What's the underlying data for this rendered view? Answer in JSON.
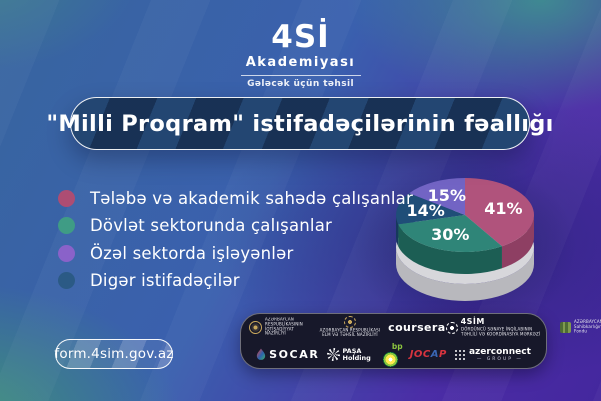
{
  "brand": {
    "name": "4Sİ",
    "subtitle": "Akademiyası",
    "tagline": "Gələcək üçün təhsil"
  },
  "title": "\"Milli Proqram\" istifadəçilərinin fəallığı",
  "legend": [
    {
      "label": "Tələbə və akademik sahədə çalışanlar",
      "color": "#ad4d73"
    },
    {
      "label": "Dövlət sektorunda çalışanlar",
      "color": "#3f9c85"
    },
    {
      "label": "Özəl sektorda işləyənlər",
      "color": "#8a62c9"
    },
    {
      "label": "Digər istifadəçilər",
      "color": "#2b5a85"
    }
  ],
  "chart_data": {
    "type": "pie",
    "style": "3d",
    "title": "\"Milli Proqram\" istifadəçilərinin fəallığı",
    "labels": [
      "Tələbə və akademik sahədə çalışanlar",
      "Dövlət sektorunda çalışanlar",
      "Özəl sektorda işləyənlər",
      "Digər istifadəçilər"
    ],
    "values": [
      41,
      30,
      15,
      14
    ],
    "value_labels": [
      "41%",
      "30%",
      "15%",
      "14%"
    ],
    "colors": [
      "#b0537c",
      "#2f8578",
      "#7264c4",
      "#1f4e78"
    ],
    "side_colors": [
      "#8e3f63",
      "#1c5e54",
      "#594ca7",
      "#16395c"
    ],
    "clockwise_order": [
      0,
      1,
      3,
      2
    ],
    "start_angle_deg": 0,
    "legend_position": "left",
    "base_top_color": "#d7d7db",
    "base_side_color": "#b8b8bd"
  },
  "footer": {
    "url": "form.4sim.gov.az"
  },
  "partners": {
    "row1": [
      {
        "type": "ministry-side",
        "icon": "economy-ministry-emblem-icon",
        "lines": [
          "AZƏRBAYCAN",
          "RESPUBLİKASININ",
          "İQTİSADİYYAT",
          "NAZİRLİYİ"
        ]
      },
      {
        "type": "ministry-stack",
        "icon": "education-ministry-emblem-icon",
        "lines": [
          "AZƏRBAYCAN RESPUBLİKASI",
          "ELM VƏ TƏHSİL NAZİRLİYİ"
        ]
      },
      {
        "type": "wordmark",
        "text": "coursera"
      },
      {
        "type": "fsim",
        "icon": "4sim-emblem-icon",
        "text": "4SİM",
        "sub": [
          "DÖRDÜNCÜ SƏNAYE İNQİLABININ",
          "TƏHLİLİ VƏ KOORDİNASİYA MƏRKƏZİ"
        ]
      },
      {
        "type": "fund",
        "icon": "entrepreneurship-fund-icon",
        "lines": [
          "AZƏRBAYCAN RESPUBLİKASI",
          "Sahibkarlığın İnkişafı",
          "Fondu"
        ]
      }
    ],
    "row2": [
      {
        "type": "socar",
        "icon": "socar-flame-icon",
        "text": "SOCAR"
      },
      {
        "type": "pasha",
        "icon": "pasha-pinwheel-icon",
        "lines": [
          "PAŞA",
          "Holding"
        ]
      },
      {
        "type": "bp",
        "icon": "bp-helios-icon",
        "text": "bp"
      },
      {
        "type": "jocap",
        "text_red": "JOC",
        "text_blue": "A",
        "text_red2": "P"
      },
      {
        "type": "azerconnect",
        "icon": "azerconnect-dots-icon",
        "text": "azerconnect",
        "sub": "GROUP"
      }
    ]
  }
}
